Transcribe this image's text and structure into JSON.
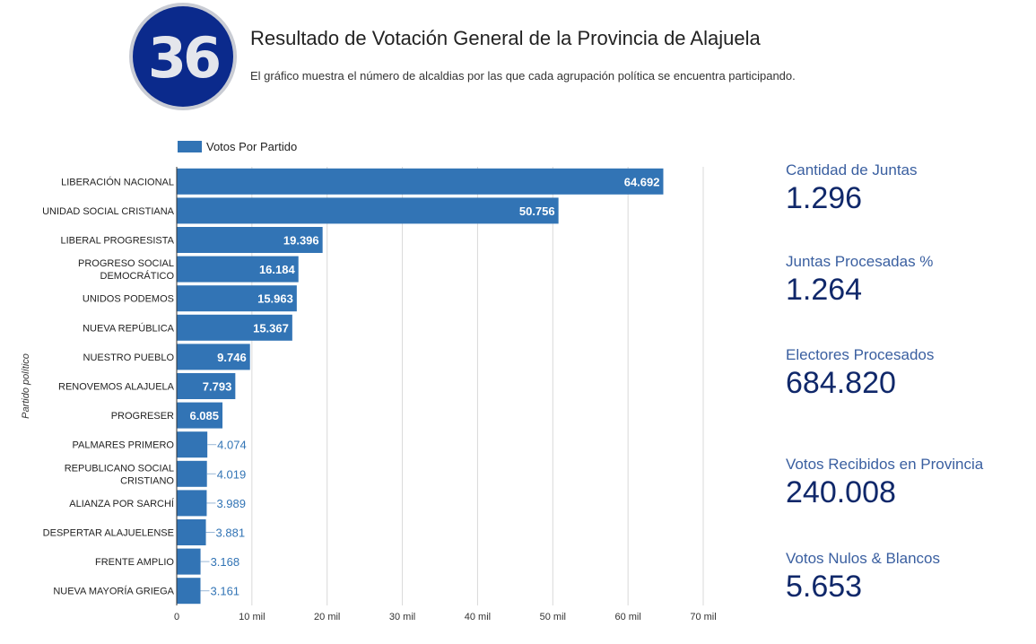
{
  "header": {
    "logo_text": "36",
    "title": "Resultado de Votación General de la Provincia de Alajuela",
    "subtitle": "El gráfico muestra el número de alcaldias por las que cada agrupación política se encuentra participando."
  },
  "colors": {
    "bar": "#3274b5",
    "label_inside": "#ffffff",
    "label_outside": "#3274b5",
    "stat_label": "#3a5fa0",
    "stat_value": "#10286a"
  },
  "stats": [
    {
      "label": "Cantidad de Juntas",
      "value": "1.296"
    },
    {
      "label": "Juntas Procesadas %",
      "value": "1.264"
    },
    {
      "label": "Electores Procesados",
      "value": "684.820"
    },
    {
      "label": "Votos Recibidos en Provincia",
      "value": "240.008"
    },
    {
      "label": "Votos Nulos & Blancos",
      "value": "5.653"
    }
  ],
  "chart_data": {
    "type": "bar",
    "orientation": "horizontal",
    "title": "",
    "xlabel": "",
    "ylabel": "Partido político",
    "legend": {
      "position": "top-left",
      "entries": [
        "Votos Por Partido"
      ]
    },
    "xlim": [
      0,
      70000
    ],
    "x_ticks": [
      0,
      10000,
      20000,
      30000,
      40000,
      50000,
      60000,
      70000
    ],
    "x_tick_labels": [
      "0",
      "10 mil",
      "20 mil",
      "30 mil",
      "40 mil",
      "50 mil",
      "60 mil",
      "70 mil"
    ],
    "grid": true,
    "categories": [
      [
        "LIBERACIÓN NACIONAL"
      ],
      [
        "UNIDAD SOCIAL CRISTIANA"
      ],
      [
        "LIBERAL PROGRESISTA"
      ],
      [
        "PROGRESO SOCIAL",
        "DEMOCRÁTICO"
      ],
      [
        "UNIDOS PODEMOS"
      ],
      [
        "NUEVA REPÚBLICA"
      ],
      [
        "NUESTRO PUEBLO"
      ],
      [
        "RENOVEMOS ALAJUELA"
      ],
      [
        "PROGRESER"
      ],
      [
        "PALMARES PRIMERO"
      ],
      [
        "REPUBLICANO SOCIAL",
        "CRISTIANO"
      ],
      [
        "ALIANZA POR SARCHÍ"
      ],
      [
        "DESPERTAR ALAJUELENSE"
      ],
      [
        "FRENTE AMPLIO"
      ],
      [
        "NUEVA MAYORÍA GRIEGA"
      ]
    ],
    "series": [
      {
        "name": "Votos Por Partido",
        "values": [
          64692,
          50756,
          19396,
          16184,
          15963,
          15367,
          9746,
          7793,
          6085,
          4074,
          4019,
          3989,
          3881,
          3168,
          3161
        ],
        "labels": [
          "64.692",
          "50.756",
          "19.396",
          "16.184",
          "15.963",
          "15.367",
          "9.746",
          "7.793",
          "6.085",
          "4.074",
          "4.019",
          "3.989",
          "3.881",
          "3.168",
          "3.161"
        ]
      }
    ]
  }
}
